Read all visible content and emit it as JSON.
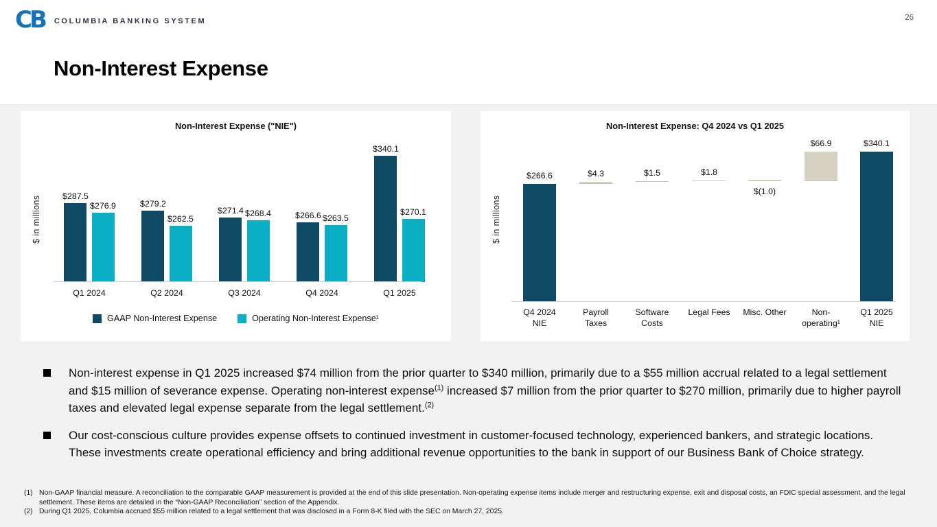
{
  "page_number": "26",
  "header": {
    "logo_mark": "CB",
    "logo_text": "COLUMBIA BANKING SYSTEM",
    "title": "Non-Interest Expense"
  },
  "colors": {
    "navy": "#0e4a63",
    "cyan": "#0aafc6",
    "beige": "#d5d2c3",
    "logo_blue": "#1473b9",
    "background": "#f2f2f2"
  },
  "chart_data": [
    {
      "type": "bar",
      "title": "Non-Interest Expense (\"NIE\")",
      "ylabel": "$ in millions",
      "categories": [
        "Q1 2024",
        "Q2 2024",
        "Q3 2024",
        "Q4 2024",
        "Q1 2025"
      ],
      "series": [
        {
          "name": "GAAP Non-Interest Expense",
          "values": [
            287.5,
            279.2,
            271.4,
            266.6,
            340.1
          ],
          "labels": [
            "$287.5",
            "$279.2",
            "$271.4",
            "$266.6",
            "$340.1"
          ]
        },
        {
          "name": "Operating Non-Interest Expense¹",
          "values": [
            276.9,
            262.5,
            268.4,
            263.5,
            270.1
          ],
          "labels": [
            "$276.9",
            "$262.5",
            "$268.4",
            "$263.5",
            "$270.1"
          ]
        }
      ],
      "ylim": [
        200,
        390
      ],
      "grid": false,
      "legend_position": "bottom"
    },
    {
      "type": "bar",
      "subtype": "waterfall",
      "title": "Non-Interest Expense: Q4 2024 vs Q1 2025",
      "ylabel": "$ in millions",
      "items": [
        {
          "label": "Q4 2024\nNIE",
          "value": 266.6,
          "display": "$266.6",
          "kind": "total"
        },
        {
          "label": "Payroll\nTaxes",
          "value": 4.3,
          "display": "$4.3",
          "kind": "increase"
        },
        {
          "label": "Software\nCosts",
          "value": 1.5,
          "display": "$1.5",
          "kind": "increase"
        },
        {
          "label": "Legal Fees",
          "value": 1.8,
          "display": "$1.8",
          "kind": "increase"
        },
        {
          "label": "Misc. Other",
          "value": -1.0,
          "display": "$(1.0)",
          "kind": "decrease"
        },
        {
          "label": "Non-\noperating¹",
          "value": 66.9,
          "display": "$66.9",
          "kind": "increase"
        },
        {
          "label": "Q1 2025\nNIE",
          "value": 340.1,
          "display": "$340.1",
          "kind": "total"
        }
      ],
      "ylim": [
        0,
        430
      ],
      "grid": false
    }
  ],
  "bullets": [
    {
      "t1": "Non-interest expense in Q1 2025 increased $74 million from the prior quarter to $340 million, primarily due to a $55 million accrual related to a legal settlement and $15 million of severance expense. Operating non-interest expense",
      "s1": "(1)",
      "t2": " increased $7 million from the prior quarter to $270 million, primarily due to higher payroll taxes and elevated legal expense separate from the legal settlement.",
      "s2": "(2)"
    },
    {
      "t1": "Our cost-conscious culture provides expense offsets to continued investment in customer-focused technology, experienced bankers, and strategic locations. These investments create operational efficiency and bring additional revenue opportunities to the bank in support of our Business Bank of Choice strategy."
    }
  ],
  "footnotes": [
    {
      "num": "(1)",
      "text": "Non-GAAP financial measure. A reconciliation to the comparable GAAP measurement is provided at the end of this slide presentation. Non-operating expense items include merger and restructuring expense, exit and disposal costs, an FDIC special assessment, and the legal settlement. These items are detailed in the “Non-GAAP Reconciliation” section of the Appendix."
    },
    {
      "num": "(2)",
      "text": "During Q1 2025, Columbia accrued $55 million related to a legal settlement that was disclosed in a Form 8-K filed with the SEC on March 27, 2025."
    }
  ]
}
